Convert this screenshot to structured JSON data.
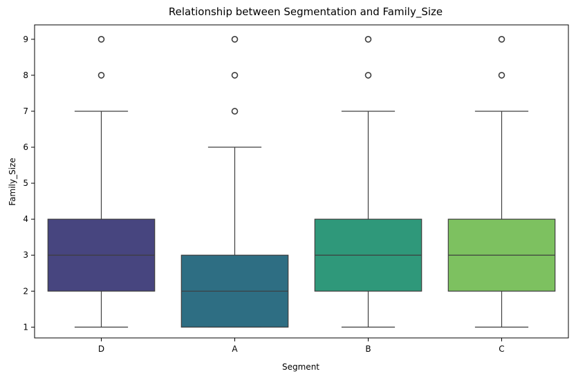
{
  "chart_data": {
    "type": "box",
    "title": "Relationship between Segmentation and Family_Size",
    "xlabel": "Segment",
    "ylabel": "Family_Size",
    "categories": [
      "D",
      "A",
      "B",
      "C"
    ],
    "ylim": [
      0.7,
      9.4
    ],
    "yticks": [
      1,
      2,
      3,
      4,
      5,
      6,
      7,
      8,
      9
    ],
    "grid": false,
    "legend": "none",
    "boxes": [
      {
        "category": "D",
        "whisker_low": 1,
        "q1": 2,
        "median": 3,
        "q3": 4,
        "whisker_high": 7,
        "outliers": [
          8,
          9
        ],
        "color": "#47457f"
      },
      {
        "category": "A",
        "whisker_low": 1,
        "q1": 1,
        "median": 2,
        "q3": 3,
        "whisker_high": 6,
        "outliers": [
          7,
          8,
          9
        ],
        "color": "#2e6e83"
      },
      {
        "category": "B",
        "whisker_low": 1,
        "q1": 2,
        "median": 3,
        "q3": 4,
        "whisker_high": 7,
        "outliers": [
          8,
          9
        ],
        "color": "#2f987a"
      },
      {
        "category": "C",
        "whisker_low": 1,
        "q1": 2,
        "median": 3,
        "q3": 4,
        "whisker_high": 7,
        "outliers": [
          8,
          9
        ],
        "color": "#7dc160"
      }
    ]
  }
}
